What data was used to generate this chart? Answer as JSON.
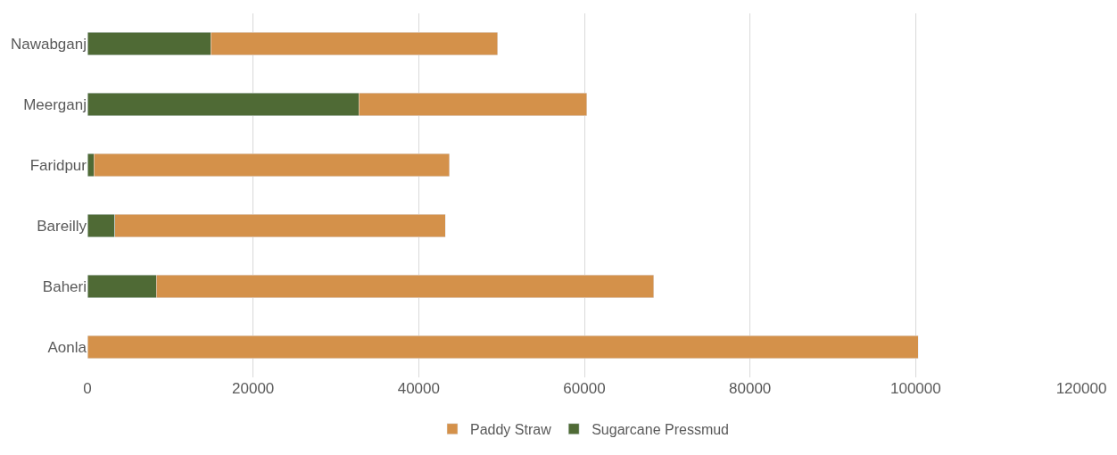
{
  "chart_data": {
    "type": "bar",
    "orientation": "horizontal",
    "stacked": true,
    "categories": [
      "Nawabganj",
      "Meerganj",
      "Faridpur",
      "Bareilly",
      "Baheri",
      "Aonla"
    ],
    "series": [
      {
        "name": "Sugarcane Pressmud",
        "color": "#4f6a35",
        "values": [
          14900,
          32800,
          800,
          3300,
          8300,
          0
        ]
      },
      {
        "name": "Paddy Straw",
        "color": "#d4914a",
        "values": [
          34600,
          27500,
          42900,
          39900,
          60100,
          100300
        ]
      }
    ],
    "xlim": [
      0,
      120000
    ],
    "xticks": [
      0,
      20000,
      40000,
      60000,
      80000,
      100000,
      120000
    ],
    "grid": "x",
    "legend": "bottom"
  }
}
